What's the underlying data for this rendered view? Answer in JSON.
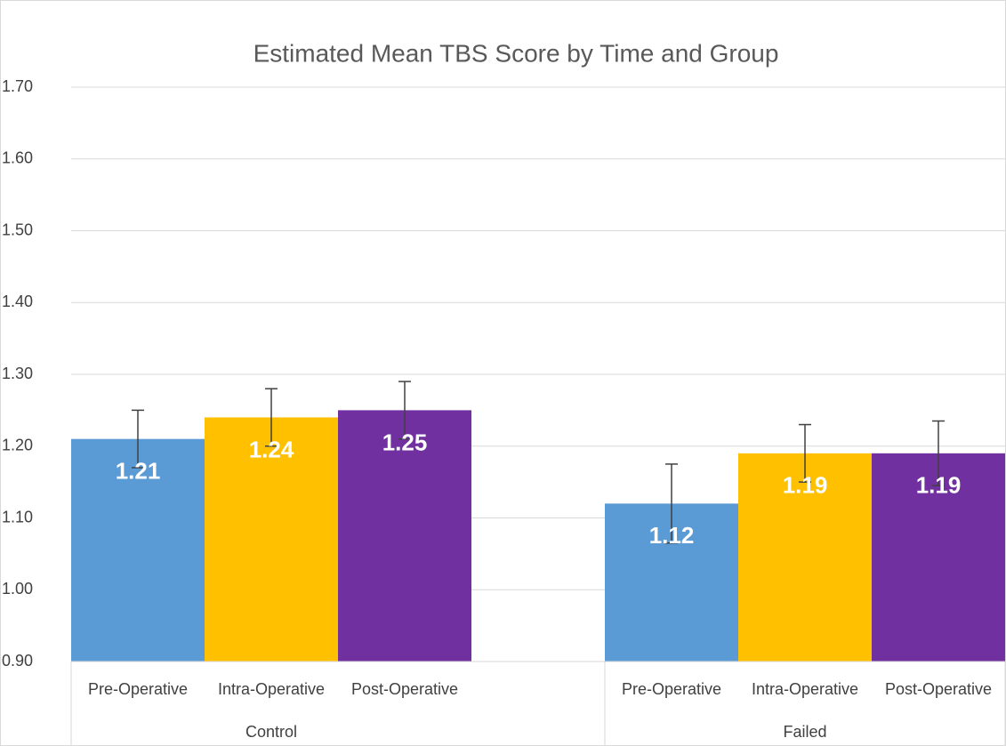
{
  "chart_data": {
    "type": "bar",
    "title": "Estimated Mean TBS Score by Time and Group",
    "categories": [
      "Control",
      "Failed"
    ],
    "series": [
      {
        "name": "Pre-Operative",
        "color": "#5b9bd5",
        "values": [
          1.21,
          1.12
        ],
        "errors": [
          0.04,
          0.055
        ]
      },
      {
        "name": "Intra-Operative",
        "color": "#ffc000",
        "values": [
          1.24,
          1.19
        ],
        "errors": [
          0.04,
          0.04
        ]
      },
      {
        "name": "Post-Operative",
        "color": "#7030a0",
        "values": [
          1.25,
          1.19
        ],
        "errors": [
          0.04,
          0.045
        ]
      }
    ],
    "ylim": [
      0.9,
      1.7
    ],
    "yticks": [
      {
        "value": 0.9,
        "label": "0.90"
      },
      {
        "value": 1.0,
        "label": "1.00"
      },
      {
        "value": 1.1,
        "label": "1.10"
      },
      {
        "value": 1.2,
        "label": "1.20"
      },
      {
        "value": 1.3,
        "label": "1.30"
      },
      {
        "value": 1.4,
        "label": "1.40"
      },
      {
        "value": 1.5,
        "label": "1.50"
      },
      {
        "value": 1.6,
        "label": "1.60"
      },
      {
        "value": 1.7,
        "label": "1.70"
      }
    ],
    "grid": true,
    "error_bar_color": "#404040"
  }
}
